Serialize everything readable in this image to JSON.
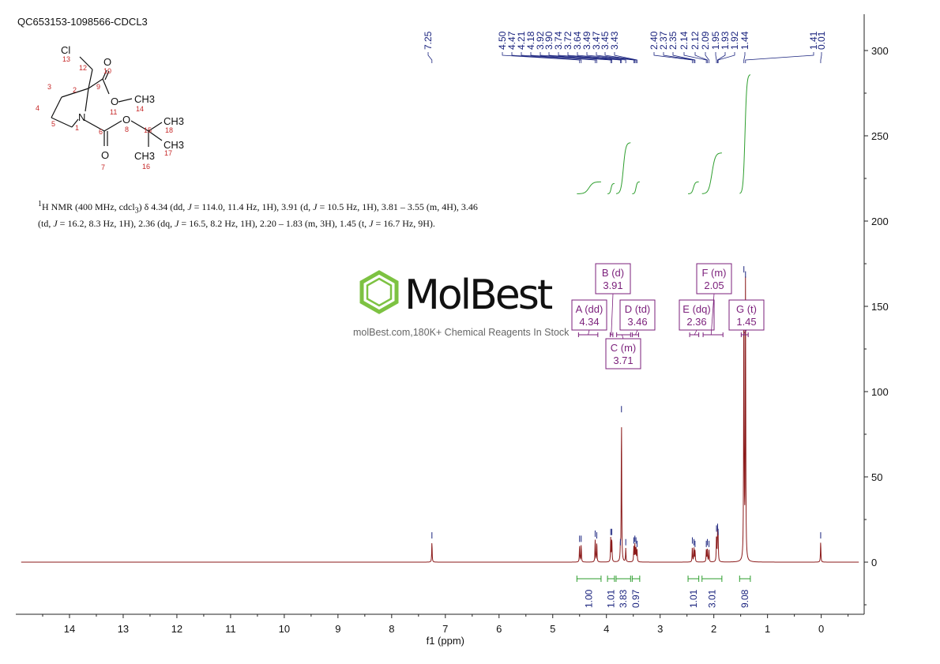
{
  "sample_id": "QC653153-1098566-CDCL3",
  "nmr_description_html": "<sup>1</sup>H NMR (400 MHz, cdcl<sub>3</sub>) δ 4.34 (dd, <i>J</i> = 114.0, 11.4 Hz, 1H), 3.91 (d, <i>J</i> = 10.5 Hz, 1H), 3.81 – 3.55 (m, 4H), 3.46 (td, <i>J</i> = 16.2, 8.3 Hz, 1H), 2.36 (dq, <i>J</i> = 16.5, 8.2 Hz, 1H), 2.20 – 1.83 (m, 3H), 1.45 (t, <i>J</i> = 16.7 Hz, 9H).",
  "watermark": {
    "brand": "MolBest",
    "tagline": "molBest.com,180K+ Chemical Reagents In Stock",
    "accent": "#7dc242"
  },
  "molecule": {
    "labels": [
      "Cl",
      "O",
      "O",
      "CH3",
      "N",
      "O",
      "CH3",
      "CH3",
      "O",
      "CH3"
    ],
    "atom_numbers": [
      "13",
      "12",
      "10",
      "3",
      "2",
      "9",
      "4",
      "11",
      "14",
      "1",
      "5",
      "8",
      "15",
      "18",
      "6",
      "17",
      "7",
      "16"
    ]
  },
  "chart_data": {
    "type": "line",
    "xlabel": "f1 (ppm)",
    "ylabel": "",
    "xlim": [
      15.0,
      -0.8
    ],
    "ylim": [
      -30,
      320
    ],
    "x_ticks": [
      14,
      13,
      12,
      11,
      10,
      9,
      8,
      7,
      6,
      5,
      4,
      3,
      2,
      1,
      0
    ],
    "y_ticks": [
      0,
      50,
      100,
      150,
      200,
      250,
      300
    ],
    "colors": {
      "spectrum": "#8b1a1a",
      "integral": "#2e9e2e",
      "peak_label": "#1a237e",
      "multiplet": "#7b1f7b"
    },
    "peak_list": [
      "7.25",
      "4.50",
      "4.47",
      "4.21",
      "4.18",
      "3.92",
      "3.90",
      "3.74",
      "3.72",
      "3.64",
      "3.49",
      "3.47",
      "3.45",
      "3.43",
      "2.40",
      "2.37",
      "2.35",
      "2.14",
      "2.12",
      "2.09",
      "1.95",
      "1.93",
      "1.92",
      "1.44",
      "1.41",
      "0.01"
    ],
    "peaks": [
      {
        "ppm": 7.25,
        "height": 12
      },
      {
        "ppm": 4.5,
        "height": 10
      },
      {
        "ppm": 4.47,
        "height": 10
      },
      {
        "ppm": 4.21,
        "height": 13
      },
      {
        "ppm": 4.18,
        "height": 12
      },
      {
        "ppm": 3.92,
        "height": 14
      },
      {
        "ppm": 3.9,
        "height": 14
      },
      {
        "ppm": 3.74,
        "height": 8
      },
      {
        "ppm": 3.72,
        "height": 86
      },
      {
        "ppm": 3.64,
        "height": 8
      },
      {
        "ppm": 3.49,
        "height": 9
      },
      {
        "ppm": 3.47,
        "height": 10
      },
      {
        "ppm": 3.45,
        "height": 9
      },
      {
        "ppm": 3.43,
        "height": 7
      },
      {
        "ppm": 2.4,
        "height": 9
      },
      {
        "ppm": 2.37,
        "height": 8
      },
      {
        "ppm": 2.35,
        "height": 7
      },
      {
        "ppm": 2.14,
        "height": 7
      },
      {
        "ppm": 2.12,
        "height": 8
      },
      {
        "ppm": 2.09,
        "height": 7
      },
      {
        "ppm": 1.95,
        "height": 16
      },
      {
        "ppm": 1.93,
        "height": 17
      },
      {
        "ppm": 1.92,
        "height": 14
      },
      {
        "ppm": 1.44,
        "height": 168
      },
      {
        "ppm": 1.41,
        "height": 165
      },
      {
        "ppm": 0.01,
        "height": 12
      }
    ],
    "multiplets": [
      {
        "letter": "A",
        "type": "dd",
        "shift": "4.34",
        "range": [
          4.52,
          4.16
        ]
      },
      {
        "letter": "B",
        "type": "d",
        "shift": "3.91",
        "range": [
          3.93,
          3.88
        ]
      },
      {
        "letter": "C",
        "type": "m",
        "shift": "3.71",
        "range": [
          3.81,
          3.55
        ]
      },
      {
        "letter": "D",
        "type": "td",
        "shift": "3.46",
        "range": [
          3.52,
          3.4
        ]
      },
      {
        "letter": "E",
        "type": "dq",
        "shift": "2.36",
        "range": [
          2.45,
          2.28
        ]
      },
      {
        "letter": "F",
        "type": "m",
        "shift": "2.05",
        "range": [
          2.2,
          1.83
        ]
      },
      {
        "letter": "G",
        "type": "t",
        "shift": "1.45",
        "range": [
          1.49,
          1.36
        ]
      }
    ],
    "integrals": [
      {
        "label": "1.00",
        "from": 4.55,
        "to": 4.1,
        "y_start": 216,
        "y_end": 223
      },
      {
        "label": "1.01",
        "from": 3.98,
        "to": 3.85,
        "y_start": 216,
        "y_end": 222
      },
      {
        "label": "3.83",
        "from": 3.82,
        "to": 3.55,
        "y_start": 216,
        "y_end": 246
      },
      {
        "label": "0.97",
        "from": 3.52,
        "to": 3.38,
        "y_start": 216,
        "y_end": 223
      },
      {
        "label": "1.01",
        "from": 2.48,
        "to": 2.28,
        "y_start": 216,
        "y_end": 223
      },
      {
        "label": "3.01",
        "from": 2.22,
        "to": 1.85,
        "y_start": 216,
        "y_end": 240
      },
      {
        "label": "9.08",
        "from": 1.52,
        "to": 1.32,
        "y_start": 216,
        "y_end": 286
      }
    ]
  }
}
